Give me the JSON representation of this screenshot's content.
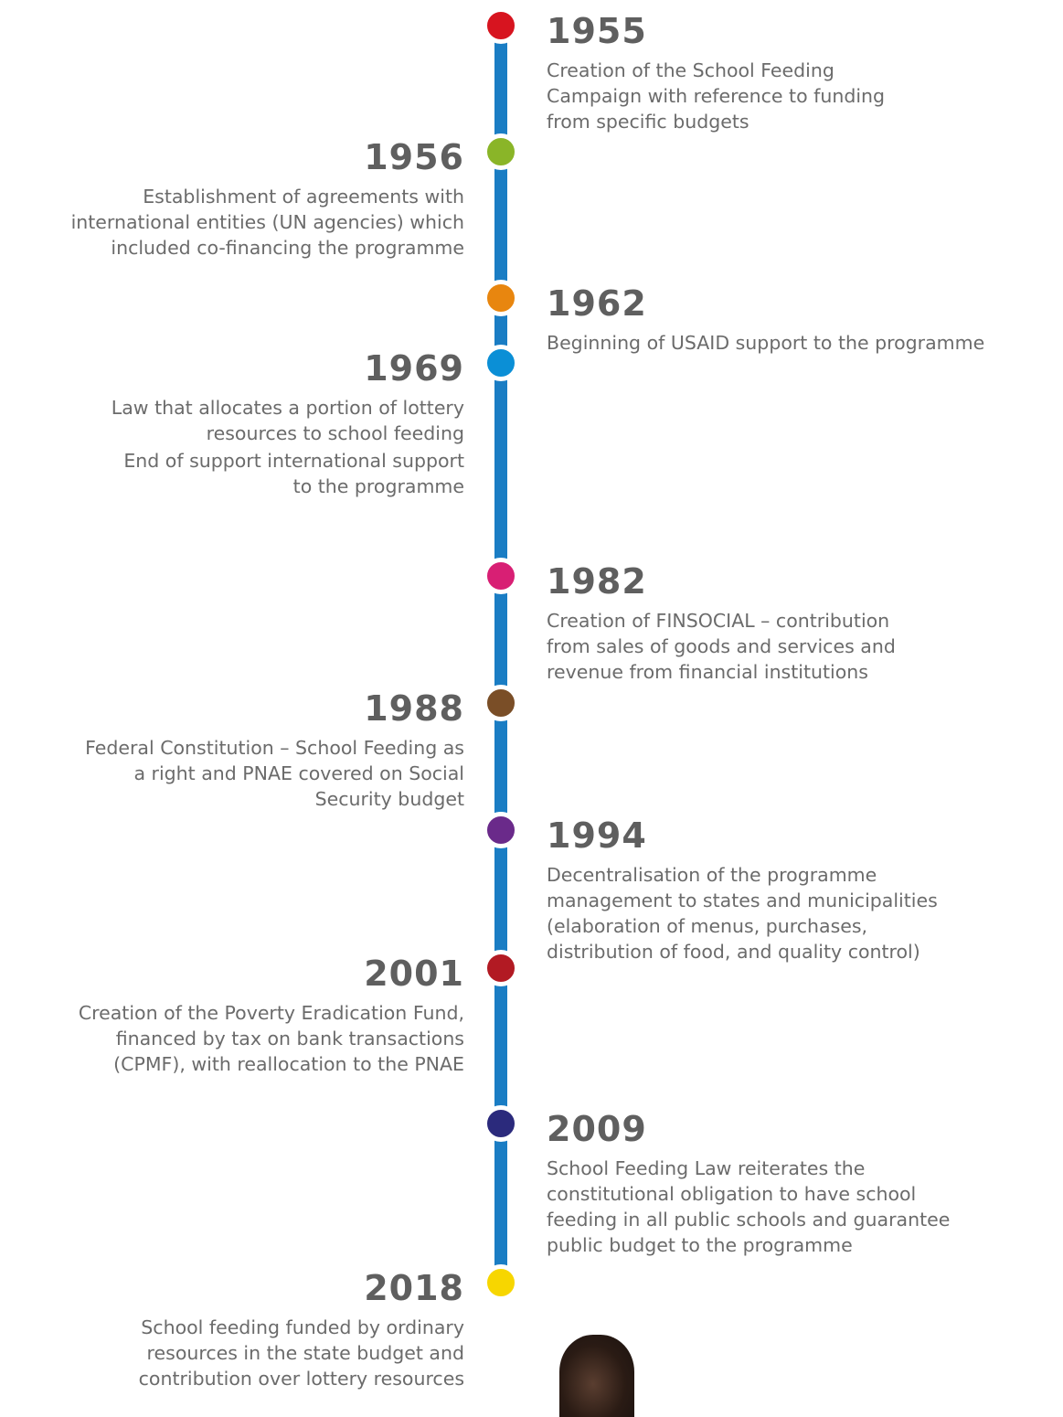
{
  "events": [
    {
      "year": "1955",
      "paragraphs": [
        [
          "Creation of the School Feeding",
          "Campaign with reference to funding",
          "from specific budgets"
        ]
      ]
    },
    {
      "year": "1956",
      "paragraphs": [
        [
          "Establishment of agreements with",
          "international entities (UN agencies) which",
          "included co-financing the programme"
        ]
      ]
    },
    {
      "year": "1962",
      "paragraphs": [
        [
          "Beginning of USAID support to the programme"
        ]
      ]
    },
    {
      "year": "1969",
      "paragraphs": [
        [
          "Law that allocates a portion of lottery",
          "resources to school feeding"
        ],
        [
          "End of support international support",
          "to the programme"
        ]
      ]
    },
    {
      "year": "1982",
      "paragraphs": [
        [
          "Creation of FINSOCIAL – contribution",
          "from sales of goods and services and",
          "revenue from financial institutions"
        ]
      ]
    },
    {
      "year": "1988",
      "paragraphs": [
        [
          "Federal Constitution – School Feeding as",
          "a right and PNAE covered on Social",
          "Security budget"
        ]
      ]
    },
    {
      "year": "1994",
      "paragraphs": [
        [
          "Decentralisation of the programme",
          "management to states and municipalities",
          "(elaboration of menus, purchases,",
          "distribution of food, and quality control)"
        ]
      ]
    },
    {
      "year": "2001",
      "paragraphs": [
        [
          "Creation of the Poverty Eradication Fund,",
          "financed by tax on bank transactions",
          "(CPMF), with reallocation to the PNAE"
        ]
      ]
    },
    {
      "year": "2009",
      "paragraphs": [
        [
          "School Feeding Law reiterates the",
          "constitutional obligation to have school",
          "feeding in all public schools and guarantee",
          "public budget to the programme"
        ]
      ]
    },
    {
      "year": "2018",
      "paragraphs": [
        [
          "School feeding funded by ordinary",
          "resources in the state budget and",
          "contribution over lottery resources"
        ]
      ]
    }
  ]
}
